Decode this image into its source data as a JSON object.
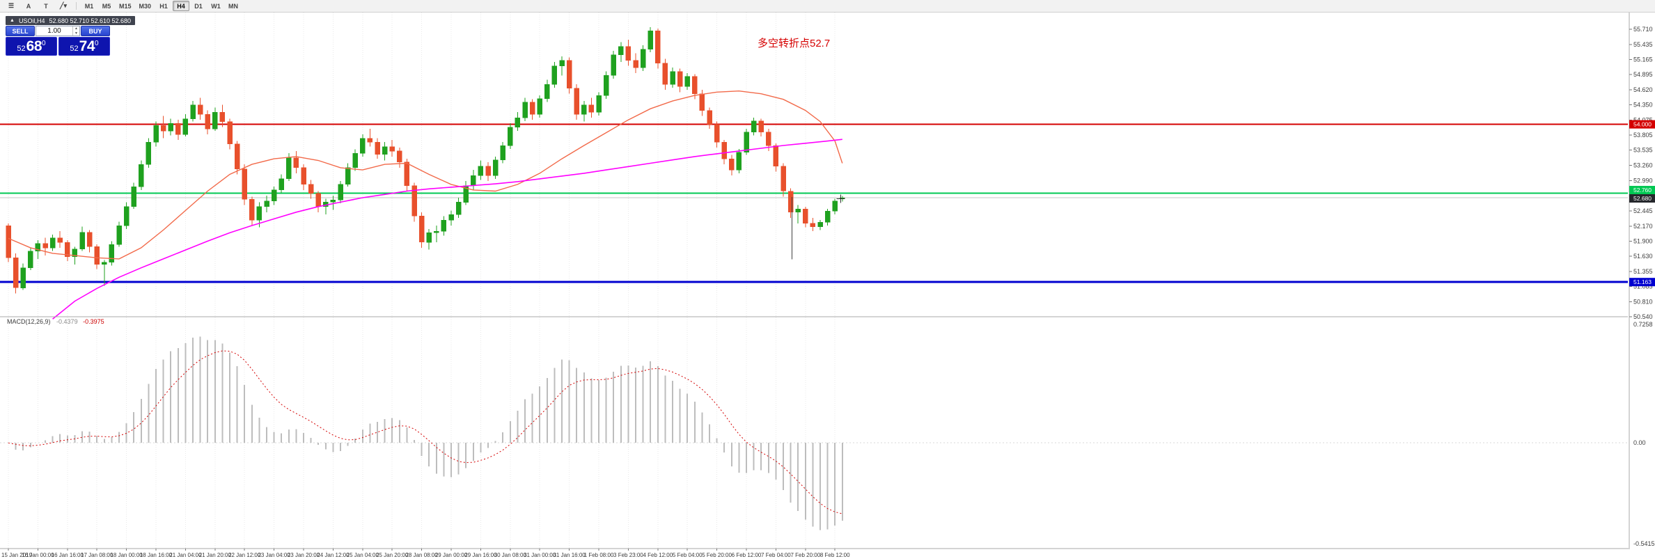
{
  "toolbar": {
    "items": [
      {
        "id": "menu-icon",
        "glyph": "☰"
      },
      {
        "id": "crosshair-button",
        "glyph": "A"
      },
      {
        "id": "text-tool-button",
        "glyph": "T"
      },
      {
        "id": "draw-tool-button",
        "glyph": "╱▾"
      }
    ],
    "timeframes": [
      "M1",
      "M5",
      "M15",
      "M30",
      "H1",
      "H4",
      "D1",
      "W1",
      "MN"
    ],
    "active_timeframe": "H4"
  },
  "symbol_bar": {
    "collapse_glyph": "▲",
    "symbol": "USOil,H4",
    "ohlc": "52.680 52.710 52.610 52.680"
  },
  "trade_panel": {
    "sell_label": "SELL",
    "buy_label": "BUY",
    "lot": "1.00",
    "sell_price": {
      "whole": "52",
      "pips": "68",
      "sup": "0"
    },
    "buy_price": {
      "whole": "52",
      "pips": "74",
      "sup": "0"
    }
  },
  "annotation": {
    "text": "多空转折点52.7",
    "color": "#d60000"
  },
  "macd_label": {
    "name": "MACD(12,26,9)",
    "main": "-0.4379",
    "signal": "-0.3975"
  },
  "chart_data": {
    "type": "candlestick",
    "symbol": "USOil",
    "timeframe": "H4",
    "price_axis": {
      "max": 55.71,
      "min": 50.54,
      "tick_labels": [
        55.71,
        55.435,
        55.165,
        54.895,
        54.62,
        54.35,
        54.075,
        53.805,
        53.535,
        53.26,
        52.99,
        52.715,
        52.445,
        52.17,
        51.9,
        51.63,
        51.355,
        51.085,
        50.81,
        50.54
      ]
    },
    "time_labels": [
      "15 Jan 2019",
      "16 Jan 00:00",
      "16 Jan 16:00",
      "17 Jan 08:00",
      "18 Jan 00:00",
      "18 Jan 16:00",
      "21 Jan 04:00",
      "21 Jan 20:00",
      "22 Jan 12:00",
      "23 Jan 04:00",
      "23 Jan 20:00",
      "24 Jan 12:00",
      "25 Jan 04:00",
      "25 Jan 20:00",
      "28 Jan 08:00",
      "29 Jan 00:00",
      "29 Jan 16:00",
      "30 Jan 08:00",
      "31 Jan 00:00",
      "31 Jan 16:00",
      "1 Feb 08:00",
      "3 Feb 23:00",
      "4 Feb 12:00",
      "5 Feb 04:00",
      "5 Feb 20:00",
      "6 Feb 12:00",
      "7 Feb 04:00",
      "7 Feb 20:00",
      "8 Feb 12:00"
    ],
    "candles_per_label": 4,
    "candles": [
      [
        52.18,
        52.22,
        51.52,
        51.6
      ],
      [
        51.6,
        51.68,
        50.96,
        51.06
      ],
      [
        51.06,
        51.5,
        51.02,
        51.42
      ],
      [
        51.42,
        51.78,
        51.38,
        51.72
      ],
      [
        51.72,
        51.92,
        51.58,
        51.86
      ],
      [
        51.86,
        51.96,
        51.64,
        51.78
      ],
      [
        51.78,
        52.02,
        51.72,
        51.96
      ],
      [
        51.96,
        52.08,
        51.78,
        51.88
      ],
      [
        51.88,
        51.92,
        51.54,
        51.62
      ],
      [
        51.62,
        51.8,
        51.48,
        51.76
      ],
      [
        51.76,
        52.16,
        51.72,
        52.06
      ],
      [
        52.06,
        52.1,
        51.7,
        51.8
      ],
      [
        51.8,
        51.84,
        51.4,
        51.48
      ],
      [
        51.48,
        51.56,
        51.1,
        51.52
      ],
      [
        51.52,
        51.9,
        51.46,
        51.84
      ],
      [
        51.84,
        52.25,
        51.8,
        52.18
      ],
      [
        52.18,
        52.6,
        52.12,
        52.52
      ],
      [
        52.52,
        52.95,
        52.48,
        52.88
      ],
      [
        52.88,
        53.35,
        52.82,
        53.28
      ],
      [
        53.28,
        53.75,
        53.22,
        53.68
      ],
      [
        53.68,
        54.05,
        53.6,
        53.98
      ],
      [
        53.98,
        54.15,
        53.75,
        53.88
      ],
      [
        53.88,
        54.1,
        53.8,
        54.02
      ],
      [
        54.02,
        54.08,
        53.72,
        53.82
      ],
      [
        53.82,
        54.18,
        53.78,
        54.1
      ],
      [
        54.1,
        54.42,
        54.05,
        54.35
      ],
      [
        54.35,
        54.48,
        54.08,
        54.18
      ],
      [
        54.18,
        54.25,
        53.82,
        53.92
      ],
      [
        53.92,
        54.3,
        53.88,
        54.22
      ],
      [
        54.22,
        54.35,
        53.95,
        54.05
      ],
      [
        54.05,
        54.1,
        53.55,
        53.65
      ],
      [
        53.65,
        53.7,
        53.1,
        53.2
      ],
      [
        53.2,
        53.28,
        52.55,
        52.65
      ],
      [
        52.65,
        52.7,
        52.18,
        52.28
      ],
      [
        52.28,
        52.6,
        52.15,
        52.52
      ],
      [
        52.52,
        52.72,
        52.42,
        52.62
      ],
      [
        52.62,
        52.88,
        52.55,
        52.82
      ],
      [
        52.82,
        53.1,
        52.76,
        53.02
      ],
      [
        53.02,
        53.48,
        52.98,
        53.4
      ],
      [
        53.4,
        53.52,
        53.12,
        53.22
      ],
      [
        53.22,
        53.28,
        52.82,
        52.92
      ],
      [
        52.92,
        53.0,
        52.66,
        52.76
      ],
      [
        52.76,
        52.8,
        52.42,
        52.52
      ],
      [
        52.52,
        52.66,
        52.38,
        52.6
      ],
      [
        52.6,
        52.72,
        52.46,
        52.64
      ],
      [
        52.64,
        52.98,
        52.58,
        52.92
      ],
      [
        52.92,
        53.3,
        52.88,
        53.22
      ],
      [
        53.22,
        53.55,
        53.16,
        53.48
      ],
      [
        53.48,
        53.82,
        53.42,
        53.75
      ],
      [
        53.75,
        53.92,
        53.6,
        53.68
      ],
      [
        53.68,
        53.75,
        53.38,
        53.46
      ],
      [
        53.46,
        53.68,
        53.35,
        53.6
      ],
      [
        53.6,
        53.72,
        53.42,
        53.52
      ],
      [
        53.52,
        53.58,
        53.22,
        53.32
      ],
      [
        53.32,
        53.38,
        52.8,
        52.9
      ],
      [
        52.9,
        52.95,
        52.25,
        52.35
      ],
      [
        52.35,
        52.42,
        51.78,
        51.88
      ],
      [
        51.88,
        52.12,
        51.75,
        52.05
      ],
      [
        52.05,
        52.18,
        51.88,
        52.08
      ],
      [
        52.08,
        52.35,
        52.0,
        52.28
      ],
      [
        52.28,
        52.45,
        52.18,
        52.38
      ],
      [
        52.38,
        52.68,
        52.32,
        52.6
      ],
      [
        52.6,
        52.98,
        52.55,
        52.9
      ],
      [
        52.9,
        53.18,
        52.82,
        53.08
      ],
      [
        53.08,
        53.35,
        53.0,
        53.25
      ],
      [
        53.25,
        53.32,
        52.98,
        53.08
      ],
      [
        53.08,
        53.42,
        53.02,
        53.36
      ],
      [
        53.36,
        53.68,
        53.3,
        53.62
      ],
      [
        53.62,
        54.02,
        53.56,
        53.95
      ],
      [
        53.95,
        54.22,
        53.88,
        54.12
      ],
      [
        54.12,
        54.48,
        54.06,
        54.4
      ],
      [
        54.4,
        54.45,
        54.08,
        54.18
      ],
      [
        54.18,
        54.52,
        54.12,
        54.46
      ],
      [
        54.46,
        54.8,
        54.4,
        54.72
      ],
      [
        54.72,
        55.12,
        54.66,
        55.05
      ],
      [
        55.05,
        55.22,
        54.88,
        55.15
      ],
      [
        55.15,
        55.2,
        54.55,
        54.65
      ],
      [
        54.65,
        54.72,
        54.08,
        54.18
      ],
      [
        54.18,
        54.42,
        54.05,
        54.35
      ],
      [
        54.35,
        54.48,
        54.12,
        54.22
      ],
      [
        54.22,
        54.58,
        54.16,
        54.52
      ],
      [
        54.52,
        54.95,
        54.46,
        54.88
      ],
      [
        54.88,
        55.32,
        54.82,
        55.25
      ],
      [
        55.25,
        55.48,
        55.12,
        55.4
      ],
      [
        55.4,
        55.52,
        55.05,
        55.15
      ],
      [
        55.15,
        55.28,
        54.92,
        55.02
      ],
      [
        55.02,
        55.42,
        54.96,
        55.35
      ],
      [
        55.35,
        55.75,
        55.3,
        55.68
      ],
      [
        55.68,
        55.72,
        55.0,
        55.1
      ],
      [
        55.1,
        55.18,
        54.62,
        54.72
      ],
      [
        54.72,
        55.02,
        54.66,
        54.95
      ],
      [
        54.95,
        55.0,
        54.58,
        54.68
      ],
      [
        54.68,
        54.92,
        54.62,
        54.86
      ],
      [
        54.86,
        54.9,
        54.45,
        54.55
      ],
      [
        54.55,
        54.62,
        54.15,
        54.25
      ],
      [
        54.25,
        54.3,
        53.92,
        54.0
      ],
      [
        54.0,
        54.05,
        53.58,
        53.68
      ],
      [
        53.68,
        53.72,
        53.28,
        53.38
      ],
      [
        53.38,
        53.45,
        53.08,
        53.18
      ],
      [
        53.18,
        53.56,
        53.12,
        53.5
      ],
      [
        53.5,
        53.92,
        53.45,
        53.86
      ],
      [
        53.86,
        54.12,
        53.8,
        54.06
      ],
      [
        54.06,
        54.1,
        53.78,
        53.86
      ],
      [
        53.86,
        53.92,
        53.52,
        53.62
      ],
      [
        53.62,
        53.66,
        53.15,
        53.25
      ],
      [
        53.25,
        53.3,
        52.7,
        52.8
      ],
      [
        52.8,
        52.85,
        52.32,
        52.42
      ],
      [
        52.42,
        52.55,
        52.22,
        52.48
      ],
      [
        52.48,
        52.52,
        52.15,
        52.22
      ],
      [
        52.22,
        52.32,
        52.08,
        52.16
      ],
      [
        52.16,
        52.28,
        52.1,
        52.24
      ],
      [
        52.24,
        52.48,
        52.18,
        52.44
      ],
      [
        52.44,
        52.66,
        52.38,
        52.62
      ],
      [
        52.66,
        52.71,
        52.61,
        52.68
      ]
    ],
    "overlays": {
      "ma_fast": {
        "color": "#f26a4a",
        "points": [
          [
            0,
            51.95
          ],
          [
            3,
            51.78
          ],
          [
            6,
            51.68
          ],
          [
            9,
            51.64
          ],
          [
            12,
            51.6
          ],
          [
            15,
            51.58
          ],
          [
            18,
            51.78
          ],
          [
            21,
            52.1
          ],
          [
            24,
            52.45
          ],
          [
            27,
            52.8
          ],
          [
            30,
            53.1
          ],
          [
            33,
            53.28
          ],
          [
            36,
            53.38
          ],
          [
            39,
            53.42
          ],
          [
            42,
            53.35
          ],
          [
            45,
            53.22
          ],
          [
            48,
            53.18
          ],
          [
            51,
            53.28
          ],
          [
            54,
            53.3
          ],
          [
            57,
            53.1
          ],
          [
            60,
            52.92
          ],
          [
            63,
            52.82
          ],
          [
            66,
            52.8
          ],
          [
            69,
            52.92
          ],
          [
            72,
            53.12
          ],
          [
            75,
            53.38
          ],
          [
            78,
            53.62
          ],
          [
            81,
            53.85
          ],
          [
            84,
            54.08
          ],
          [
            87,
            54.28
          ],
          [
            90,
            54.42
          ],
          [
            93,
            54.52
          ],
          [
            96,
            54.58
          ],
          [
            99,
            54.6
          ],
          [
            102,
            54.55
          ],
          [
            105,
            54.45
          ],
          [
            108,
            54.25
          ],
          [
            110,
            54.05
          ],
          [
            112,
            53.7
          ],
          [
            113,
            53.3
          ]
        ]
      },
      "ma_slow": {
        "color": "#ff00ff",
        "points": [
          [
            6,
            50.5
          ],
          [
            9,
            50.82
          ],
          [
            12,
            51.05
          ],
          [
            15,
            51.25
          ],
          [
            18,
            51.42
          ],
          [
            21,
            51.58
          ],
          [
            24,
            51.74
          ],
          [
            27,
            51.9
          ],
          [
            30,
            52.05
          ],
          [
            33,
            52.18
          ],
          [
            36,
            52.3
          ],
          [
            39,
            52.42
          ],
          [
            42,
            52.52
          ],
          [
            45,
            52.6
          ],
          [
            48,
            52.68
          ],
          [
            51,
            52.74
          ],
          [
            54,
            52.8
          ],
          [
            57,
            52.84
          ],
          [
            60,
            52.87
          ],
          [
            63,
            52.9
          ],
          [
            66,
            52.93
          ],
          [
            69,
            52.97
          ],
          [
            72,
            53.02
          ],
          [
            75,
            53.07
          ],
          [
            78,
            53.12
          ],
          [
            81,
            53.18
          ],
          [
            84,
            53.24
          ],
          [
            87,
            53.3
          ],
          [
            90,
            53.36
          ],
          [
            93,
            53.42
          ],
          [
            96,
            53.47
          ],
          [
            99,
            53.52
          ],
          [
            102,
            53.57
          ],
          [
            105,
            53.62
          ],
          [
            108,
            53.66
          ],
          [
            111,
            53.7
          ],
          [
            113,
            53.73
          ]
        ]
      }
    },
    "hlines": [
      {
        "label": "54.000",
        "price": 54.0,
        "color": "#d40000",
        "width": 2
      },
      {
        "label": "52.760",
        "price": 52.76,
        "color": "#00c853",
        "width": 2
      },
      {
        "label": "51.163",
        "price": 51.163,
        "color": "#0000d0",
        "width": 3
      }
    ],
    "current_price": {
      "label": "52.680",
      "price": 52.68,
      "line_color": "#c4c4c4",
      "box_color": "#25272c"
    },
    "objects": {
      "vline": {
        "x_index": 106.2,
        "price_top": 52.69,
        "price_bottom": 51.57
      },
      "cross_marker": {
        "x_index": 112.8,
        "price": 52.66
      }
    },
    "macd": {
      "label": "MACD(12,26,9)",
      "params": [
        12,
        26,
        9
      ],
      "main": -0.4379,
      "signal": -0.3975,
      "histogram_color": "#bdbdbd",
      "signal_color": "#d40000",
      "scale_labels": [
        "0.7258",
        "0.00",
        "-0.5415"
      ]
    },
    "colors": {
      "up": "#1fa11f",
      "down": "#e8502c",
      "background": "#ffffff",
      "grid": "#e9e9e9"
    }
  }
}
